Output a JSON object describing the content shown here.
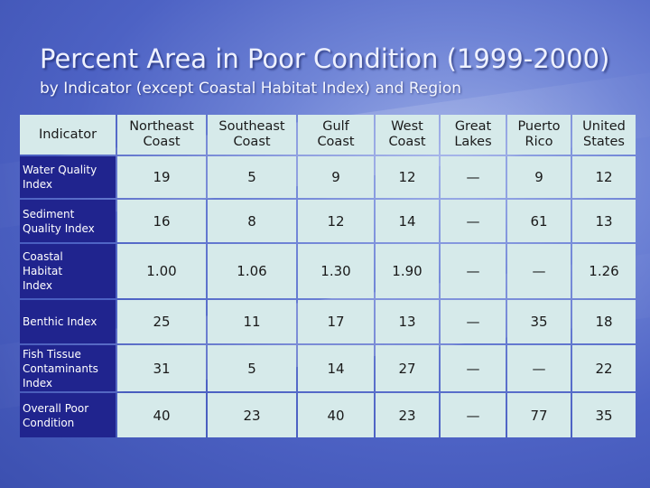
{
  "slide": {
    "title": "Percent Area in Poor Condition (1999-2000)",
    "subtitle": "by Indicator (except Coastal Habitat Index) and Region"
  },
  "table": {
    "corner_label": "Indicator",
    "columns": [
      {
        "line1": "Northeast",
        "line2": "Coast"
      },
      {
        "line1": "Southeast",
        "line2": "Coast"
      },
      {
        "line1": "Gulf",
        "line2": "Coast"
      },
      {
        "line1": "West",
        "line2": "Coast"
      },
      {
        "line1": "Great",
        "line2": "Lakes"
      },
      {
        "line1": "Puerto",
        "line2": "Rico"
      },
      {
        "line1": "United",
        "line2": "States"
      }
    ],
    "rows": [
      {
        "label_lines": [
          "Water Quality",
          "Index"
        ],
        "values": [
          "19",
          "5",
          "9",
          "12",
          "—",
          "9",
          "12"
        ]
      },
      {
        "label_lines": [
          "Sediment",
          "Quality Index"
        ],
        "values": [
          "16",
          "8",
          "12",
          "14",
          "—",
          "61",
          "13"
        ]
      },
      {
        "label_lines": [
          "Coastal",
          "Habitat",
          "Index"
        ],
        "values": [
          "1.00",
          "1.06",
          "1.30",
          "1.90",
          "—",
          "—",
          "1.26"
        ]
      },
      {
        "label_lines": [
          "Benthic Index"
        ],
        "values": [
          "25",
          "11",
          "17",
          "13",
          "—",
          "35",
          "18"
        ]
      },
      {
        "label_lines": [
          "Fish Tissue",
          "Contaminants",
          "Index"
        ],
        "values": [
          "31",
          "5",
          "14",
          "27",
          "—",
          "—",
          "22"
        ]
      },
      {
        "label_lines": [
          "Overall Poor",
          "Condition"
        ],
        "values": [
          "40",
          "23",
          "40",
          "23",
          "—",
          "77",
          "35"
        ]
      }
    ]
  }
}
